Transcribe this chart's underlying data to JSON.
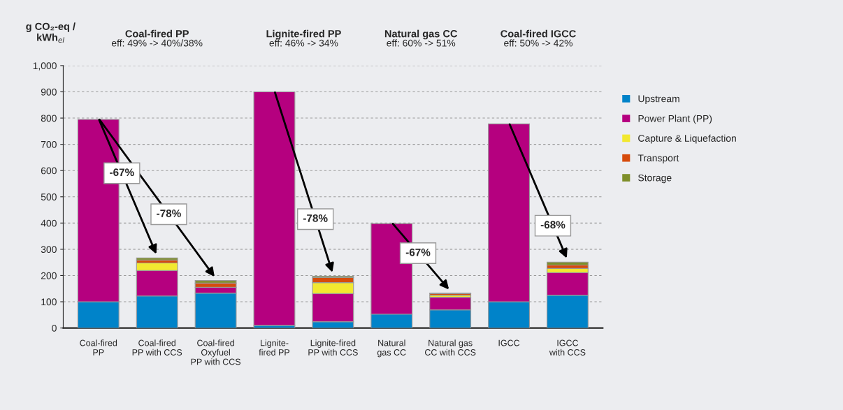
{
  "chart_data": {
    "type": "bar",
    "stacked": true,
    "ylabel": "g CO₂-eq /\nkWh$_{el}$",
    "categories": [
      "Coal-fired\nPP",
      "Coal-fired\nPP with CCS",
      "Coal-fired\nOxyfuel\nPP with CCS",
      "Lignite-\nfired PP",
      "Lignite-fired\nPP with CCS",
      "Natural\ngas CC",
      "Natural gas\nCC with CCS",
      "IGCC",
      "IGCC\nwith CCS"
    ],
    "series": [
      {
        "name": "Upstream",
        "color": "#0083c9",
        "values": [
          100,
          122,
          133,
          10,
          24,
          53,
          69,
          100,
          125
        ]
      },
      {
        "name": "Power Plant (PP)",
        "color": "#b5007f",
        "values": [
          695,
          97,
          22,
          890,
          107,
          345,
          48,
          678,
          86
        ]
      },
      {
        "name": "Capture & Liquefaction",
        "color": "#f2e830",
        "values": [
          null,
          29,
          null,
          null,
          42,
          null,
          8,
          null,
          16
        ]
      },
      {
        "name": "Transport",
        "color": "#d64b0c",
        "values": [
          null,
          11,
          16,
          null,
          19,
          null,
          6,
          null,
          13
        ]
      },
      {
        "name": "Storage",
        "color": "#7f8f2a",
        "values": [
          null,
          8,
          10,
          null,
          5,
          null,
          2,
          null,
          11
        ]
      }
    ],
    "ylim": [
      0,
      1000
    ],
    "yticks": [
      0,
      100,
      200,
      300,
      400,
      500,
      600,
      700,
      800,
      900,
      {
        "value": 1000,
        "label": "1,000"
      }
    ],
    "grid": "y",
    "legend": "right",
    "annotations": [
      "Coal-fired PP\neff: 49% -> 40%/38%",
      "Lignite-fired PP\neff: 46% -> 34%",
      "Natural gas CC\neff: 60% -> 51%",
      "Coal-fired IGCC\neff: 50% -> 42%",
      "-67%",
      "-78%",
      "-78%",
      "-67%",
      "-68%"
    ]
  }
}
